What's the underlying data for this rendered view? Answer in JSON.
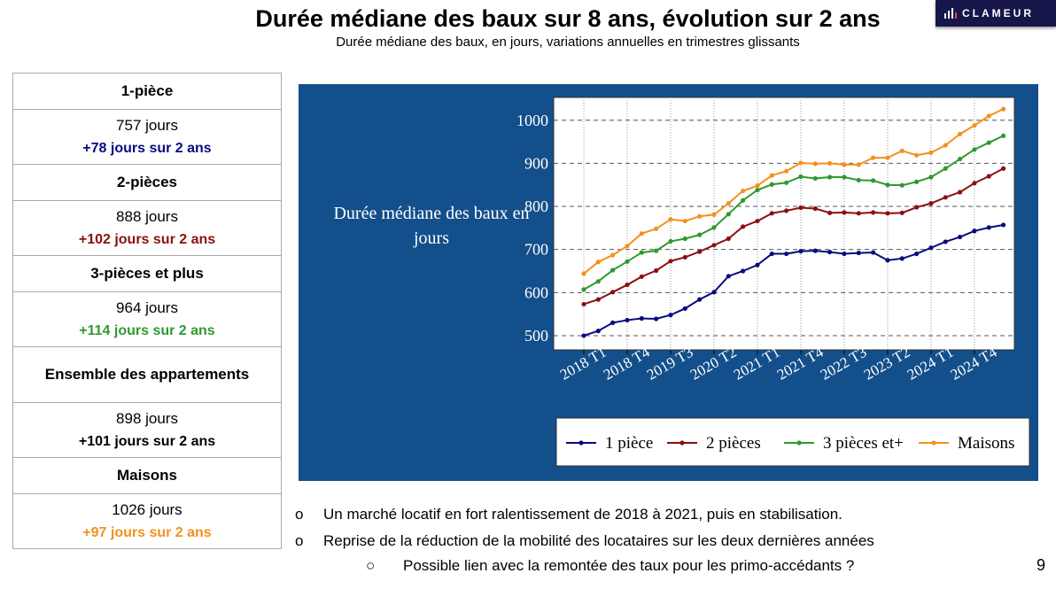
{
  "header": {
    "title": "Durée médiane des baux sur 8 ans, évolution sur 2 ans",
    "subtitle": "Durée médiane des baux, en jours, variations annuelles en trimestres glissants",
    "logo": "CLAMEUR"
  },
  "table": [
    {
      "label": "1-pièce",
      "value": "757 jours",
      "delta": "+78 jours sur 2 ans",
      "color": "#0a0a80"
    },
    {
      "label": "2-pièces",
      "value": "888 jours",
      "delta": "+102 jours sur 2 ans",
      "color": "#8b1010"
    },
    {
      "label": "3-pièces et plus",
      "value": "964 jours",
      "delta": "+114 jours sur 2 ans",
      "color": "#2e9a2e"
    },
    {
      "label": "Ensemble des appartements",
      "value": "898 jours",
      "delta": "+101 jours sur 2 ans",
      "color": "#000000"
    },
    {
      "label": "Maisons",
      "value": "1026 jours",
      "delta": "+97 jours sur 2 ans",
      "color": "#f5901e"
    }
  ],
  "chart_data": {
    "type": "line",
    "title": "Durée médiane des baux en jours",
    "x": [
      "2018 T1",
      "2018 T2",
      "2018 T3",
      "2018 T4",
      "2019 T1",
      "2019 T2",
      "2019 T3",
      "2019 T4",
      "2020 T1",
      "2020 T2",
      "2020 T3",
      "2020 T4",
      "2021 T1",
      "2021 T2",
      "2021 T3",
      "2021 T4",
      "2022 T1",
      "2022 T2",
      "2022 T3",
      "2022 T4",
      "2023 T1",
      "2023 T2",
      "2023 T3",
      "2023 T4",
      "2024 T1",
      "2024 T2",
      "2024 T3",
      "2024 T4",
      "2025 T1",
      "2025 T2"
    ],
    "xticks": [
      "2018 T1",
      "2018 T4",
      "2019 T3",
      "2020 T2",
      "2021 T1",
      "2021 T4",
      "2022 T3",
      "2023 T2",
      "2024 T1",
      "2024 T4"
    ],
    "yticks": [
      500,
      600,
      700,
      800,
      900,
      1000
    ],
    "ylim": [
      467,
      1053
    ],
    "grid": true,
    "legend": "bottom",
    "series": [
      {
        "name": "1 pièce",
        "color": "#0a0a80",
        "values": [
          500,
          511,
          530,
          536,
          540,
          539,
          548,
          563,
          584,
          601,
          638,
          650,
          664,
          690,
          690,
          696,
          697,
          694,
          690,
          692,
          693,
          675,
          679,
          690,
          704,
          718,
          729,
          743,
          751,
          757
        ]
      },
      {
        "name": "2 pièces",
        "color": "#8b1010",
        "values": [
          573,
          584,
          601,
          618,
          637,
          651,
          673,
          682,
          695,
          710,
          725,
          753,
          766,
          784,
          790,
          797,
          795,
          785,
          786,
          784,
          786,
          784,
          785,
          798,
          807,
          821,
          833,
          854,
          870,
          888
        ]
      },
      {
        "name": "3 pièces et+",
        "color": "#2e9a2e",
        "values": [
          607,
          626,
          652,
          672,
          693,
          697,
          719,
          725,
          734,
          751,
          782,
          814,
          838,
          851,
          855,
          869,
          865,
          868,
          868,
          861,
          860,
          850,
          849,
          857,
          868,
          888,
          910,
          932,
          948,
          964
        ]
      },
      {
        "name": "Maisons",
        "color": "#f5901e",
        "values": [
          644,
          671,
          687,
          708,
          737,
          748,
          770,
          766,
          777,
          781,
          807,
          836,
          848,
          872,
          882,
          901,
          899,
          900,
          897,
          897,
          913,
          913,
          929,
          919,
          925,
          942,
          968,
          988,
          1010,
          1026
        ]
      }
    ]
  },
  "bullets": [
    {
      "marker": "o",
      "text": "Un marché locatif en fort ralentissement de 2018 à 2021, puis en stabilisation."
    },
    {
      "marker": "o",
      "text": "Reprise de la réduction de la mobilité des locataires sur les deux dernières années"
    },
    {
      "marker": "○",
      "text": "Possible lien avec la remontée des taux pour les primo-accédants ?"
    }
  ],
  "page_number": "9"
}
